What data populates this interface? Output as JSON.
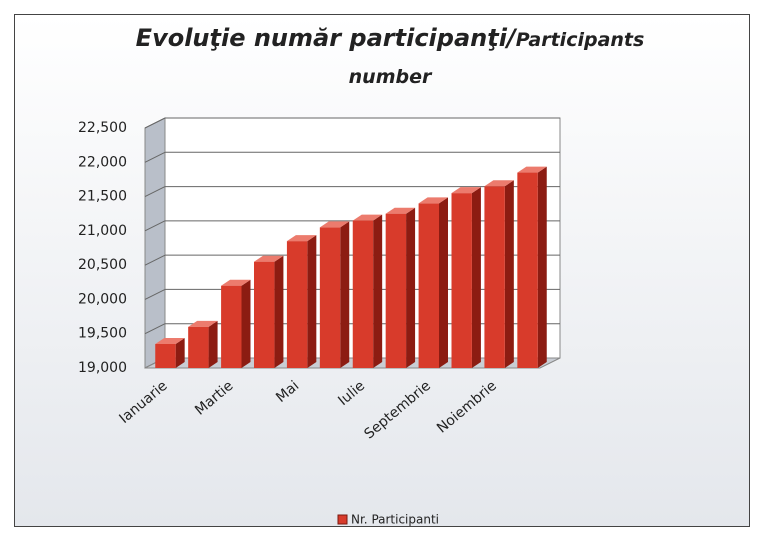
{
  "chart_data": {
    "type": "bar",
    "title": [
      "Evoluţie număr participanţi/",
      "Participants number"
    ],
    "categories": [
      "Ianuarie",
      null,
      "Martie",
      null,
      "Mai",
      null,
      "Iulie",
      null,
      "Septembrie",
      null,
      "Noiembrie",
      null
    ],
    "series": [
      {
        "name": "Nr. Participanti",
        "color": "#d83b2b",
        "values": [
          19350,
          19600,
          20200,
          20550,
          20850,
          21050,
          21150,
          21250,
          21400,
          21550,
          21650,
          21850
        ]
      }
    ],
    "ylim": [
      19000,
      22500
    ],
    "yticks": [
      {
        "value": 19000,
        "label": "19,000"
      },
      {
        "value": 19500,
        "label": "19,500"
      },
      {
        "value": 20000,
        "label": "20,000"
      },
      {
        "value": 20500,
        "label": "20,500"
      },
      {
        "value": 21000,
        "label": "21,000"
      },
      {
        "value": 21500,
        "label": "21,500"
      },
      {
        "value": 22000,
        "label": "22,000"
      },
      {
        "value": 22500,
        "label": "22,500"
      }
    ],
    "grid": true,
    "legend": "bottom"
  }
}
